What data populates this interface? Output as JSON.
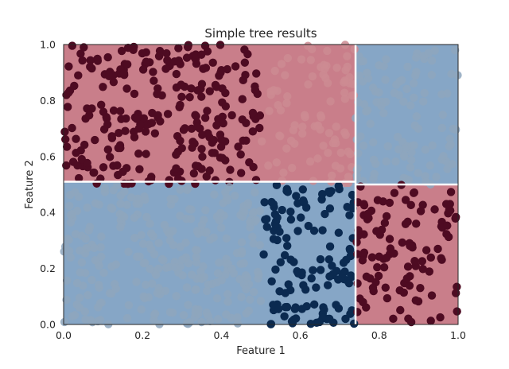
{
  "chart_data": {
    "type": "scatter",
    "title": "Simple tree results",
    "xlabel": "Feature 1",
    "ylabel": "Feature 2",
    "xlim": [
      0,
      1
    ],
    "ylim": [
      0,
      1
    ],
    "x_ticks": [
      "0.0",
      "0.2",
      "0.4",
      "0.6",
      "0.8",
      "1.0"
    ],
    "y_ticks": [
      "0.0",
      "0.2",
      "0.4",
      "0.6",
      "0.8",
      "1.0"
    ],
    "grid": false,
    "legend": "none",
    "decision_regions": [
      {
        "class": 1,
        "x": [
          0.0,
          0.74
        ],
        "y": [
          0.51,
          1.0
        ]
      },
      {
        "class": 0,
        "x": [
          0.74,
          1.0
        ],
        "y": [
          0.5,
          1.0
        ]
      },
      {
        "class": 0,
        "x": [
          0.0,
          0.74
        ],
        "y": [
          0.0,
          0.51
        ]
      },
      {
        "class": 1,
        "x": [
          0.74,
          1.0
        ],
        "y": [
          0.0,
          0.5
        ]
      }
    ],
    "point_clusters": [
      {
        "class": 1,
        "x_range": [
          0.0,
          0.5
        ],
        "y_range": [
          0.5,
          1.0
        ],
        "approx_count": 260,
        "shade": "dark"
      },
      {
        "class": 1,
        "x_range": [
          0.5,
          0.74
        ],
        "y_range": [
          0.5,
          1.0
        ],
        "approx_count": 90,
        "shade": "faded"
      },
      {
        "class": 0,
        "x_range": [
          0.74,
          1.0
        ],
        "y_range": [
          0.5,
          1.0
        ],
        "approx_count": 110,
        "shade": "faded"
      },
      {
        "class": 0,
        "x_range": [
          0.0,
          0.5
        ],
        "y_range": [
          0.0,
          0.5
        ],
        "approx_count": 280,
        "shade": "faded"
      },
      {
        "class": 0,
        "x_range": [
          0.5,
          0.74
        ],
        "y_range": [
          0.0,
          0.5
        ],
        "approx_count": 130,
        "shade": "dark"
      },
      {
        "class": 1,
        "x_range": [
          0.74,
          1.0
        ],
        "y_range": [
          0.0,
          0.5
        ],
        "approx_count": 110,
        "shade": "dark"
      }
    ],
    "colors": {
      "class0_region": "#86a6c6",
      "class1_region": "#c97e8a",
      "class0_point_dark": "#0b2a50",
      "class1_point_dark": "#4e0b22",
      "class0_point_faded": "#8ea6bd",
      "class1_point_faded": "#cd8b92",
      "boundary": "#ffffff"
    }
  }
}
